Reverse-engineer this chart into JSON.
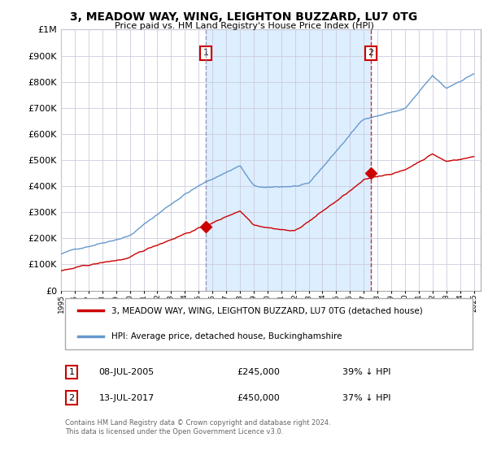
{
  "title": "3, MEADOW WAY, WING, LEIGHTON BUZZARD, LU7 0TG",
  "subtitle": "Price paid vs. HM Land Registry's House Price Index (HPI)",
  "legend_line1": "3, MEADOW WAY, WING, LEIGHTON BUZZARD, LU7 0TG (detached house)",
  "legend_line2": "HPI: Average price, detached house, Buckinghamshire",
  "transaction1_date": "08-JUL-2005",
  "transaction1_price": "£245,000",
  "transaction1_hpi": "39% ↓ HPI",
  "transaction2_date": "13-JUL-2017",
  "transaction2_price": "£450,000",
  "transaction2_hpi": "37% ↓ HPI",
  "footer": "Contains HM Land Registry data © Crown copyright and database right 2024.\nThis data is licensed under the Open Government Licence v3.0.",
  "price_line_color": "#cc0000",
  "hpi_line_color": "#6699cc",
  "shade_color": "#ddeeff",
  "marker_color": "#cc0000",
  "vline1_color": "#8888aa",
  "vline2_color": "#cc0000",
  "ylim": [
    0,
    1000000
  ],
  "yticks": [
    0,
    100000,
    200000,
    300000,
    400000,
    500000,
    600000,
    700000,
    800000,
    900000,
    1000000
  ],
  "background_color": "#ffffff",
  "grid_color": "#ccccdd",
  "transaction1_x": 2005.53,
  "transaction1_y": 245000,
  "transaction2_x": 2017.53,
  "transaction2_y": 450000,
  "xlim_left": 1995.0,
  "xlim_right": 2025.5
}
